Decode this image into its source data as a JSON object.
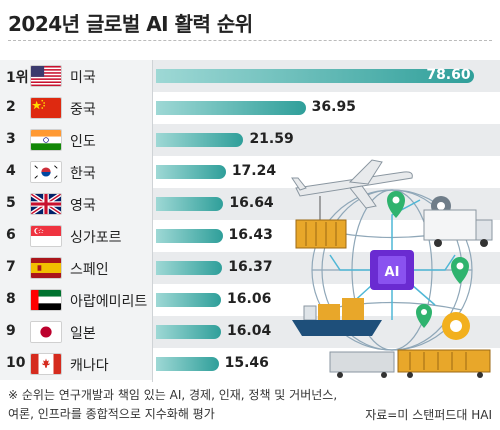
{
  "chart_data": {
    "type": "bar",
    "title": "2024년 글로벌 AI 활력 순위",
    "ranks": [
      "1위",
      "2",
      "3",
      "4",
      "5",
      "6",
      "7",
      "8",
      "9",
      "10"
    ],
    "categories": [
      "미국",
      "중국",
      "인도",
      "한국",
      "영국",
      "싱가포르",
      "스페인",
      "아랍에미리트",
      "일본",
      "캐나다"
    ],
    "values": [
      78.6,
      36.95,
      21.59,
      17.24,
      16.64,
      16.43,
      16.37,
      16.06,
      16.04,
      15.46
    ],
    "value_labels": [
      "78.60",
      "36.95",
      "21.59",
      "17.24",
      "16.64",
      "16.43",
      "16.37",
      "16.06",
      "16.04",
      "15.46"
    ],
    "xlim": [
      0,
      80
    ],
    "orientation": "horizontal",
    "bar_color": "#2f9f9a",
    "footnote": "※ 순위는 연구개발과 책임 있는 AI, 경제, 인재, 정책 및 거버넌스, 여론, 인프라를 종합적으로 지수화해 평가",
    "source": "자료=미 스탠퍼드대 HAI"
  },
  "flags": [
    "us-flag-icon",
    "china-flag-icon",
    "india-flag-icon",
    "korea-flag-icon",
    "uk-flag-icon",
    "singapore-flag-icon",
    "spain-flag-icon",
    "uae-flag-icon",
    "japan-flag-icon",
    "canada-flag-icon"
  ]
}
